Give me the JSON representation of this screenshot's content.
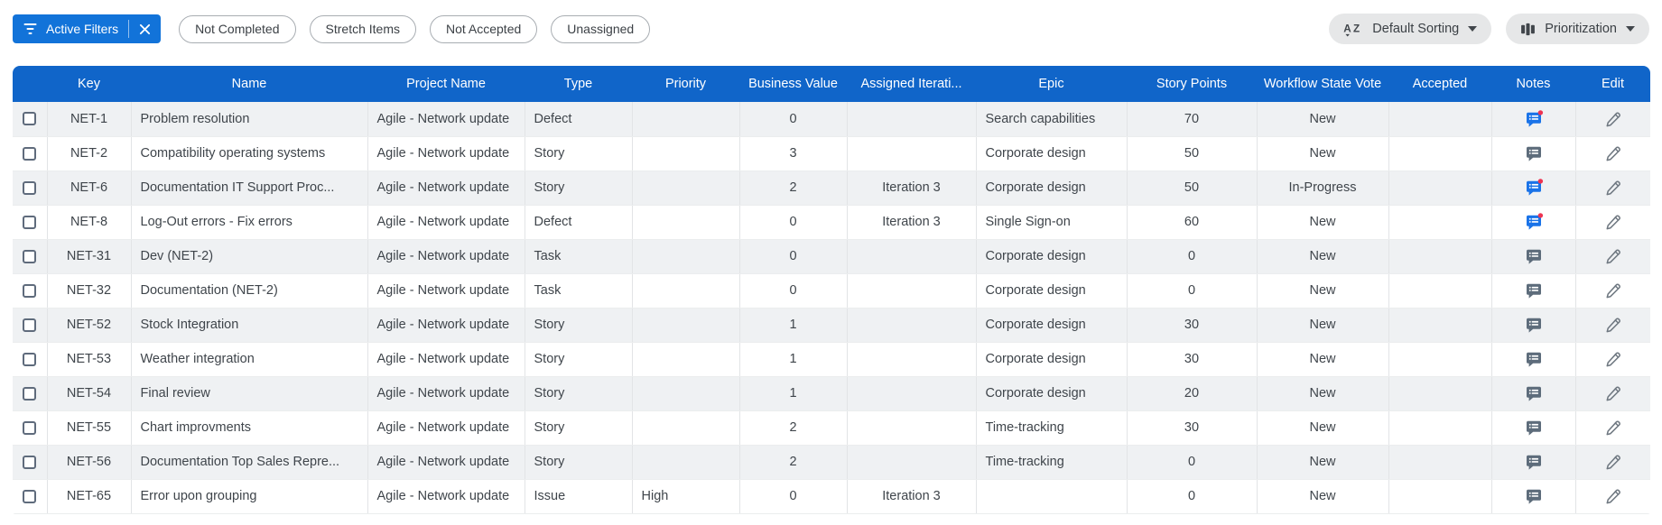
{
  "toolbar": {
    "active_filters_label": "Active Filters",
    "chips": [
      "Not Completed",
      "Stretch Items",
      "Not Accepted",
      "Unassigned"
    ],
    "sorting_label": "Default Sorting",
    "grouping_label": "Prioritization"
  },
  "table": {
    "columns": [
      {
        "id": "key",
        "label": "Key"
      },
      {
        "id": "name",
        "label": "Name"
      },
      {
        "id": "project_name",
        "label": "Project Name"
      },
      {
        "id": "type",
        "label": "Type"
      },
      {
        "id": "priority",
        "label": "Priority"
      },
      {
        "id": "business_value",
        "label": "Business Value"
      },
      {
        "id": "assigned_iteration",
        "label": "Assigned Iterati..."
      },
      {
        "id": "epic",
        "label": "Epic"
      },
      {
        "id": "story_points",
        "label": "Story Points"
      },
      {
        "id": "workflow_state_vote",
        "label": "Workflow State Vote"
      },
      {
        "id": "accepted",
        "label": "Accepted"
      },
      {
        "id": "notes",
        "label": "Notes"
      },
      {
        "id": "edit",
        "label": "Edit"
      }
    ],
    "rows": [
      {
        "key": "NET-1",
        "name": "Problem resolution",
        "project_name": "Agile - Network update",
        "type": "Defect",
        "priority": "",
        "business_value": "0",
        "assigned_iteration": "",
        "epic": "Search capabilities",
        "story_points": "70",
        "workflow_state_vote": "New",
        "accepted": "",
        "notes": "unread"
      },
      {
        "key": "NET-2",
        "name": "Compatibility operating systems",
        "project_name": "Agile - Network update",
        "type": "Story",
        "priority": "",
        "business_value": "3",
        "assigned_iteration": "",
        "epic": "Corporate design",
        "story_points": "50",
        "workflow_state_vote": "New",
        "accepted": "",
        "notes": "read"
      },
      {
        "key": "NET-6",
        "name": "Documentation IT Support Proc...",
        "project_name": "Agile - Network update",
        "type": "Story",
        "priority": "",
        "business_value": "2",
        "assigned_iteration": "Iteration 3",
        "epic": "Corporate design",
        "story_points": "50",
        "workflow_state_vote": "In-Progress",
        "accepted": "",
        "notes": "unread"
      },
      {
        "key": "NET-8",
        "name": "Log-Out errors - Fix errors",
        "project_name": "Agile - Network update",
        "type": "Defect",
        "priority": "",
        "business_value": "0",
        "assigned_iteration": "Iteration 3",
        "epic": "Single Sign-on",
        "story_points": "60",
        "workflow_state_vote": "New",
        "accepted": "",
        "notes": "unread"
      },
      {
        "key": "NET-31",
        "name": "Dev (NET-2)",
        "project_name": "Agile - Network update",
        "type": "Task",
        "priority": "",
        "business_value": "0",
        "assigned_iteration": "",
        "epic": "Corporate design",
        "story_points": "0",
        "workflow_state_vote": "New",
        "accepted": "",
        "notes": "read"
      },
      {
        "key": "NET-32",
        "name": "Documentation (NET-2)",
        "project_name": "Agile - Network update",
        "type": "Task",
        "priority": "",
        "business_value": "0",
        "assigned_iteration": "",
        "epic": "Corporate design",
        "story_points": "0",
        "workflow_state_vote": "New",
        "accepted": "",
        "notes": "read"
      },
      {
        "key": "NET-52",
        "name": "Stock Integration",
        "project_name": "Agile - Network update",
        "type": "Story",
        "priority": "",
        "business_value": "1",
        "assigned_iteration": "",
        "epic": "Corporate design",
        "story_points": "30",
        "workflow_state_vote": "New",
        "accepted": "",
        "notes": "read"
      },
      {
        "key": "NET-53",
        "name": "Weather integration",
        "project_name": "Agile - Network update",
        "type": "Story",
        "priority": "",
        "business_value": "1",
        "assigned_iteration": "",
        "epic": "Corporate design",
        "story_points": "30",
        "workflow_state_vote": "New",
        "accepted": "",
        "notes": "read"
      },
      {
        "key": "NET-54",
        "name": "Final review",
        "project_name": "Agile - Network update",
        "type": "Story",
        "priority": "",
        "business_value": "1",
        "assigned_iteration": "",
        "epic": "Corporate design",
        "story_points": "20",
        "workflow_state_vote": "New",
        "accepted": "",
        "notes": "read"
      },
      {
        "key": "NET-55",
        "name": "Chart improvments",
        "project_name": "Agile - Network update",
        "type": "Story",
        "priority": "",
        "business_value": "2",
        "assigned_iteration": "",
        "epic": "Time-tracking",
        "story_points": "30",
        "workflow_state_vote": "New",
        "accepted": "",
        "notes": "read"
      },
      {
        "key": "NET-56",
        "name": "Documentation Top Sales Repre...",
        "project_name": "Agile - Network update",
        "type": "Story",
        "priority": "",
        "business_value": "2",
        "assigned_iteration": "",
        "epic": "Time-tracking",
        "story_points": "0",
        "workflow_state_vote": "New",
        "accepted": "",
        "notes": "read"
      },
      {
        "key": "NET-65",
        "name": "Error upon grouping",
        "project_name": "Agile - Network update",
        "type": "Issue",
        "priority": "High",
        "business_value": "0",
        "assigned_iteration": "Iteration 3",
        "epic": "",
        "story_points": "0",
        "workflow_state_vote": "New",
        "accepted": "",
        "notes": "read"
      }
    ]
  },
  "colors": {
    "header_bg": "#1065c9",
    "accent_button": "#1273d9",
    "notes_active": "#1a73e8",
    "notes_inactive": "#5d6c7b",
    "notification_dot": "#ee3452",
    "row_alt": "#eff1f3"
  }
}
